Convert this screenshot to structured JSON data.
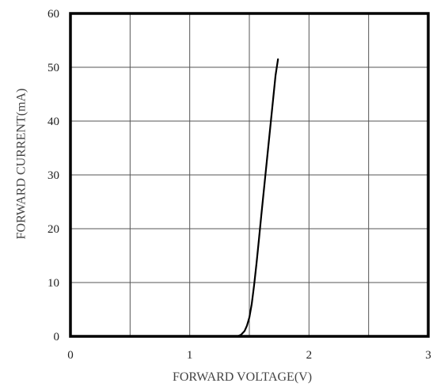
{
  "chart_data": {
    "type": "line",
    "title": "",
    "xlabel": "FORWARD VOLTAGE(V)",
    "ylabel": "FORWARD CURRENT(mA)",
    "xlim": [
      0,
      3
    ],
    "ylim": [
      0,
      60
    ],
    "xticks": [
      "0",
      "1",
      "2",
      "3"
    ],
    "yticks": [
      "0",
      "10",
      "20",
      "30",
      "40",
      "50",
      "60"
    ],
    "x_gridlines": [
      0.5,
      1,
      1.5,
      2,
      2.5
    ],
    "y_gridlines": [
      10,
      20,
      30,
      40,
      50
    ],
    "grid": true,
    "legend": "none",
    "series": [
      {
        "color": "#000000",
        "x": [
          1.4,
          1.43,
          1.46,
          1.48,
          1.5,
          1.52,
          1.54,
          1.56,
          1.58,
          1.6,
          1.63,
          1.66,
          1.69,
          1.72,
          1.74
        ],
        "y": [
          0,
          0.3,
          1,
          2,
          3.5,
          6,
          9.5,
          13.5,
          18,
          22.5,
          29,
          35.5,
          42,
          48.5,
          51.5
        ]
      }
    ]
  }
}
